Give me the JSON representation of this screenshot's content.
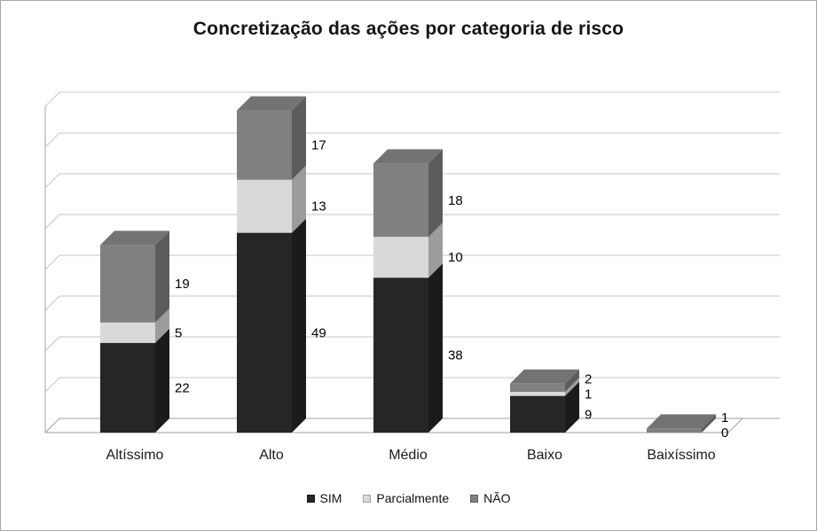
{
  "chart_data": {
    "type": "bar",
    "variant": "3d-stacked-column",
    "title": "Concretização das ações por categoria de risco",
    "categories": [
      "Altíssimo",
      "Alto",
      "Médio",
      "Baixo",
      "Baixíssimo"
    ],
    "series": [
      {
        "name": "SIM",
        "color": "#262626",
        "values": [
          22,
          49,
          38,
          9,
          0
        ]
      },
      {
        "name": "Parcialmente",
        "color": "#d9d9d9",
        "values": [
          5,
          13,
          10,
          1,
          0
        ]
      },
      {
        "name": "NÃO",
        "color": "#808080",
        "values": [
          19,
          17,
          18,
          2,
          1
        ]
      }
    ],
    "data_labels": {
      "position": "right-of-segment",
      "visible": [
        [
          "22",
          "5",
          "19"
        ],
        [
          "49",
          "13",
          "17"
        ],
        [
          "38",
          "10",
          "18"
        ],
        [
          "9",
          "1",
          "2"
        ],
        [
          "0",
          "",
          "1"
        ]
      ]
    },
    "value_axis": {
      "min": 0,
      "max": 80,
      "step": 10,
      "tick_labels_visible": false
    },
    "grid": true,
    "gridline_color": "#c4c4c4",
    "axis_color": "#a0a0a0",
    "legend_position": "bottom"
  }
}
